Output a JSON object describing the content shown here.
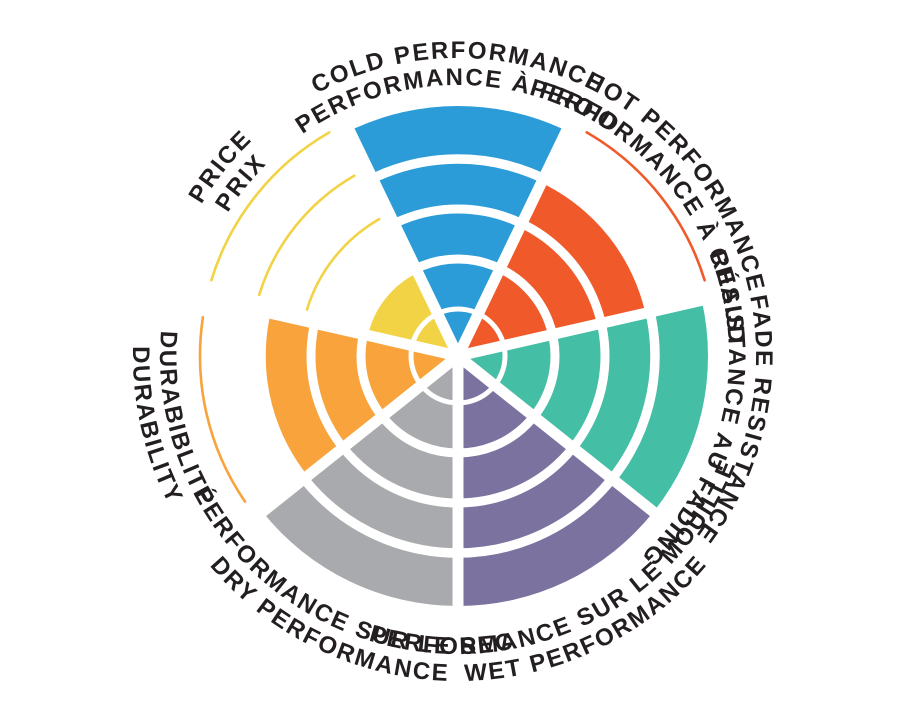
{
  "page": {
    "background": "#FFFFFF",
    "text_color": "#231F20"
  },
  "chart_data": {
    "type": "polar_sector",
    "title": "",
    "legend_position": "none",
    "grid": "concentric ring dividers + radial white gaps between sectors",
    "start_angle_deg": 90,
    "direction": "clockwise",
    "scale": {
      "min": 0,
      "max": 5,
      "rings": 5,
      "values_unit": "rings filled out of 5"
    },
    "categories": [
      {
        "id": "cold-performance",
        "label_en": "COLD PERFORMANCE",
        "label_fr": "PERFORMANCE À FROID",
        "value": 5,
        "color": "#2B9CD7"
      },
      {
        "id": "hot-performance",
        "label_en": "HOT PERFORMANCE",
        "label_fr": "PERFORMANCE À CHAUD",
        "value": 4,
        "color": "#F05A2B"
      },
      {
        "id": "fade-resistance",
        "label_en": "FADE RESISTANCE",
        "label_fr": "RÉSISTANCE AU FADING",
        "value": 5,
        "color": "#45BEA6"
      },
      {
        "id": "wet-performance",
        "label_en": "WET PERFORMANCE",
        "label_fr": "PERFORMANCE SUR LE MOUILLÉ",
        "value": 5,
        "color": "#7B72A0"
      },
      {
        "id": "dry-performance",
        "label_en": "DRY PERFORMANCE",
        "label_fr": "PERFORMANCE SUR LE SEC",
        "value": 5,
        "color": "#A9AAAD"
      },
      {
        "id": "durability",
        "label_en": "DURABILITY",
        "label_fr": "DURABIBLITÉ",
        "value": 4,
        "color": "#F8A33C"
      },
      {
        "id": "price",
        "label_en": "PRICE",
        "label_fr": "PRIX",
        "value": 2,
        "color": "#F2D345"
      }
    ]
  }
}
